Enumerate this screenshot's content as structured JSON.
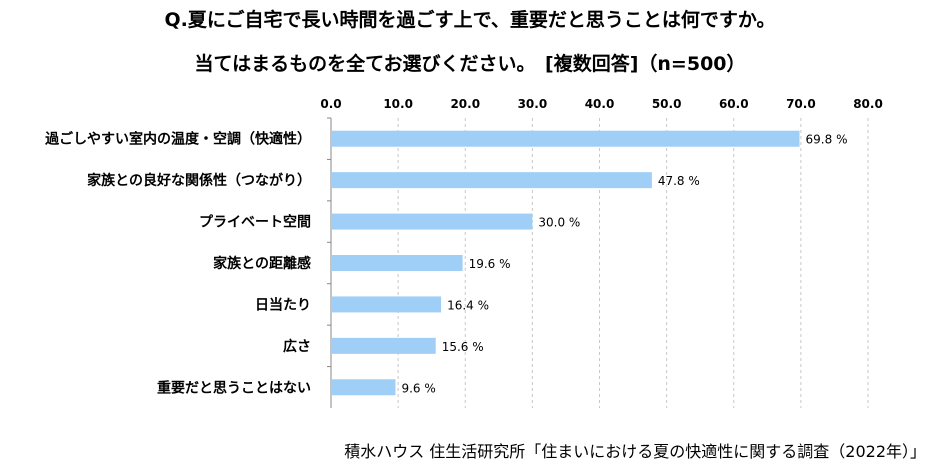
{
  "title_line1": "Q.夏にご自宅で長い時間を過ごす上で、重要だと思うことは何ですか。",
  "title_line2": "当てはまるものを全てお選びください。　[複数回答]（n=500）",
  "source": "積水ハウス 住生活研究所「住まいにおける夏の快適性に関する調査（2022年）」",
  "colors": {
    "bar": "#9fcff7",
    "grid": "#c8c8c8",
    "axis": "#888888"
  },
  "chart_data": {
    "type": "bar",
    "orientation": "horizontal",
    "categories": [
      "過ごしやすい室内の温度・空調（快適性）",
      "家族との良好な関係性（つながり）",
      "プライベート空間",
      "家族との距離感",
      "日当たり",
      "広さ",
      "重要だと思うことはない"
    ],
    "values": [
      69.8,
      47.8,
      30.0,
      19.6,
      16.4,
      15.6,
      9.6
    ],
    "value_labels": [
      "69.8 %",
      "47.8 %",
      "30.0 %",
      "19.6 %",
      "16.4 %",
      "15.6 %",
      "9.6 %"
    ],
    "xlim": [
      0,
      80
    ],
    "ticks": [
      "0.0",
      "10.0",
      "20.0",
      "30.0",
      "40.0",
      "50.0",
      "60.0",
      "70.0",
      "80.0"
    ],
    "tick_values": [
      0,
      10,
      20,
      30,
      40,
      50,
      60,
      70,
      80
    ],
    "grid": true,
    "axis_position": "top"
  }
}
